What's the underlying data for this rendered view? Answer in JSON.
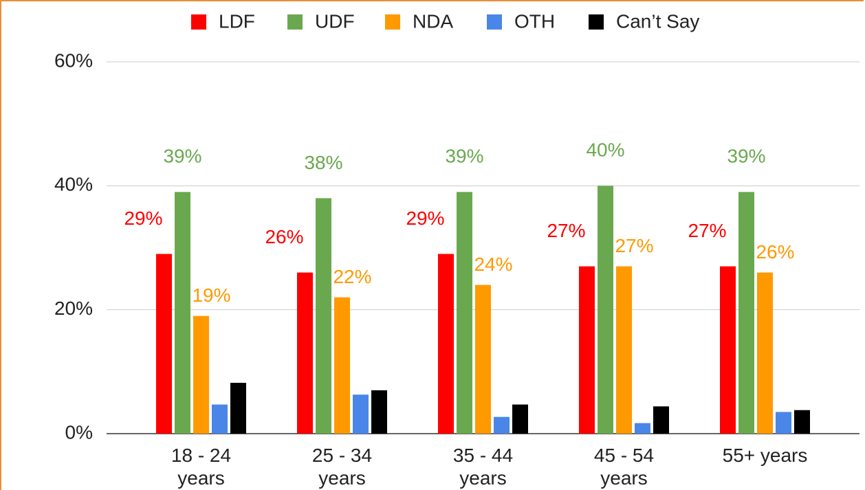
{
  "chart_data": {
    "type": "bar",
    "categories": [
      "18 - 24 years",
      "25 - 34 years",
      "35 - 44 years",
      "45 - 54 years",
      "55+ years"
    ],
    "series": [
      {
        "name": "LDF",
        "color": "#ff0000",
        "values": [
          29,
          26,
          29,
          27,
          27
        ],
        "value_labels": [
          "29%",
          "26%",
          "29%",
          "27%",
          "27%"
        ]
      },
      {
        "name": "UDF",
        "color": "#6aa84f",
        "values": [
          39,
          38,
          39,
          40,
          39
        ],
        "value_labels": [
          "39%",
          "38%",
          "39%",
          "40%",
          "39%"
        ]
      },
      {
        "name": "NDA",
        "color": "#ff9900",
        "values": [
          19,
          22,
          24,
          27,
          26
        ],
        "value_labels": [
          "19%",
          "22%",
          "24%",
          "27%",
          "26%"
        ]
      },
      {
        "name": "OTH",
        "color": "#4a86e8",
        "values": [
          4.7,
          6.3,
          2.7,
          1.7,
          3.5
        ]
      },
      {
        "name": "Can’t Say",
        "color": "#000000",
        "values": [
          8.2,
          7.0,
          4.7,
          4.4,
          3.8
        ]
      }
    ],
    "ylim": [
      0,
      60
    ],
    "yticks": [
      {
        "value": 0,
        "label": "0%"
      },
      {
        "value": 20,
        "label": "20%"
      },
      {
        "value": 40,
        "label": "40%"
      },
      {
        "value": 60,
        "label": "60%"
      }
    ],
    "grid": true,
    "legend": "top"
  }
}
